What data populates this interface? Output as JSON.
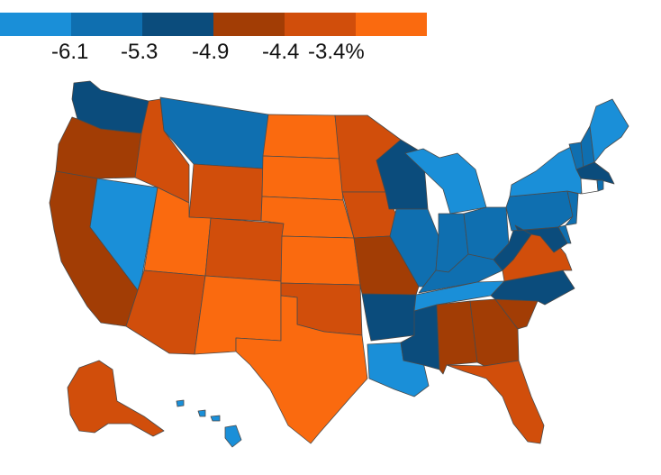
{
  "legend": {
    "colors": [
      "#1a8fd8",
      "#0f6fb0",
      "#0b4c7c",
      "#a23d05",
      "#d14e0b",
      "#fa6a0f"
    ],
    "labels": [
      "-6.1",
      "-5.3",
      "-4.9",
      "-4.4",
      "-3.4%"
    ]
  },
  "palette": {
    "light_blue": "#1a8fd8",
    "mid_blue": "#0f6fb0",
    "dark_blue": "#0b4c7c",
    "dark_orange": "#a23d05",
    "mid_orange": "#d14e0b",
    "bright_orange": "#fa6a0f",
    "no_data": "#ffffff"
  },
  "state_colors": {
    "WA": "dark_blue",
    "OR": "dark_orange",
    "CA": "dark_orange",
    "NV": "light_blue",
    "ID": "mid_orange",
    "MT": "mid_blue",
    "WY": "mid_orange",
    "UT": "bright_orange",
    "AZ": "mid_orange",
    "CO": "mid_orange",
    "NM": "bright_orange",
    "ND": "bright_orange",
    "SD": "bright_orange",
    "NE": "bright_orange",
    "KS": "bright_orange",
    "OK": "mid_orange",
    "TX": "bright_orange",
    "MN": "mid_orange",
    "IA": "mid_orange",
    "MO": "dark_orange",
    "AR": "dark_blue",
    "LA": "light_blue",
    "WI": "dark_blue",
    "IL": "mid_blue",
    "MS": "dark_blue",
    "MI": "light_blue",
    "IN": "mid_blue",
    "KY": "mid_blue",
    "TN": "light_blue",
    "AL": "dark_orange",
    "GA": "dark_orange",
    "FL": "mid_orange",
    "OH": "mid_blue",
    "WV": "dark_blue",
    "VA": "mid_orange",
    "NC": "dark_blue",
    "SC": "dark_orange",
    "PA": "mid_blue",
    "NY": "light_blue",
    "ME": "light_blue",
    "NH": "mid_blue",
    "VT": "mid_blue",
    "MA": "dark_blue",
    "CT": "no_data",
    "RI": "mid_blue",
    "NJ": "mid_blue",
    "MD": "dark_blue",
    "DE": "mid_blue",
    "AK": "mid_orange",
    "HI": "light_blue"
  }
}
